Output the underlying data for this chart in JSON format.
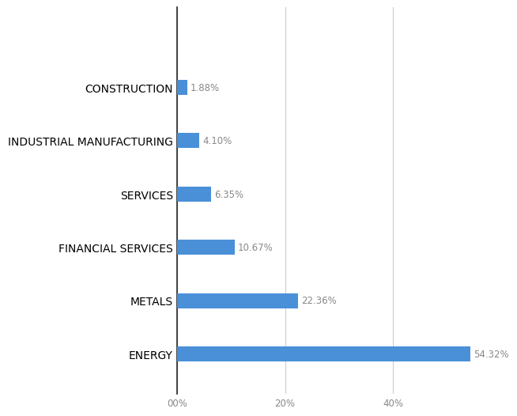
{
  "categories": [
    "ENERGY",
    "METALS",
    "FINANCIAL SERVICES",
    "SERVICES",
    "INDUSTRIAL MANUFACTURING",
    "CONSTRUCTION"
  ],
  "values": [
    54.32,
    22.36,
    10.67,
    6.35,
    4.1,
    1.88
  ],
  "labels": [
    "54.32%",
    "22.36%",
    "10.67%",
    "6.35%",
    "4.10%",
    "1.88%"
  ],
  "bar_color": "#4A90D9",
  "background_color": "#ffffff",
  "xlim": [
    0,
    57
  ],
  "xticks": [
    0,
    20,
    40
  ],
  "xticklabels": [
    "00%",
    "20%",
    "40%"
  ],
  "label_fontsize": 8.5,
  "ylabel_fontsize": 8.5,
  "bar_height": 0.28
}
